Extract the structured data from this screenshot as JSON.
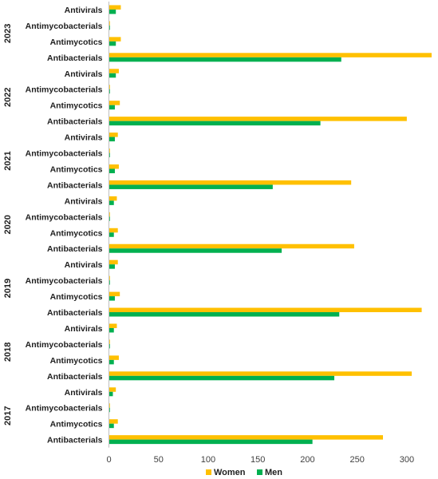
{
  "chart_data": {
    "type": "bar",
    "orientation": "horizontal",
    "title": "",
    "xlabel": "",
    "ylabel": "",
    "xlim": [
      0,
      325
    ],
    "xticks": [
      0,
      50,
      100,
      150,
      200,
      250,
      300
    ],
    "grid": false,
    "legend_position": "bottom",
    "colors": {
      "Women": "#FFC000",
      "Men": "#00B050"
    },
    "groups": [
      {
        "year": "2023",
        "categories": [
          {
            "label": "Antivirals",
            "Women": 12,
            "Men": 7
          },
          {
            "label": "Antimycobacterials",
            "Women": 1,
            "Men": 1
          },
          {
            "label": "Antimycotics",
            "Women": 12,
            "Men": 7
          },
          {
            "label": "Antibacterials",
            "Women": 325,
            "Men": 234
          }
        ]
      },
      {
        "year": "2022",
        "categories": [
          {
            "label": "Antivirals",
            "Women": 10,
            "Men": 7
          },
          {
            "label": "Antimycobacterials",
            "Women": 1,
            "Men": 1
          },
          {
            "label": "Antimycotics",
            "Women": 11,
            "Men": 6
          },
          {
            "label": "Antibacterials",
            "Women": 300,
            "Men": 213
          }
        ]
      },
      {
        "year": "2021",
        "categories": [
          {
            "label": "Antivirals",
            "Women": 9,
            "Men": 6
          },
          {
            "label": "Antimycobacterials",
            "Women": 1,
            "Men": 1
          },
          {
            "label": "Antimycotics",
            "Women": 10,
            "Men": 6
          },
          {
            "label": "Antibacterials",
            "Women": 244,
            "Men": 165
          }
        ]
      },
      {
        "year": "2020",
        "categories": [
          {
            "label": "Antivirals",
            "Women": 8,
            "Men": 5
          },
          {
            "label": "Antimycobacterials",
            "Women": 1,
            "Men": 1
          },
          {
            "label": "Antimycotics",
            "Women": 9,
            "Men": 5
          },
          {
            "label": "Antibacterials",
            "Women": 247,
            "Men": 174
          }
        ]
      },
      {
        "year": "2019",
        "categories": [
          {
            "label": "Antivirals",
            "Women": 9,
            "Men": 6
          },
          {
            "label": "Antimycobacterials",
            "Women": 1,
            "Men": 1
          },
          {
            "label": "Antimycotics",
            "Women": 11,
            "Men": 6
          },
          {
            "label": "Antibacterials",
            "Women": 315,
            "Men": 232
          }
        ]
      },
      {
        "year": "2018",
        "categories": [
          {
            "label": "Antivirals",
            "Women": 8,
            "Men": 5
          },
          {
            "label": "Antimycobacterials",
            "Women": 1,
            "Men": 1
          },
          {
            "label": "Antimycotics",
            "Women": 10,
            "Men": 5
          },
          {
            "label": "Antibacterials",
            "Women": 305,
            "Men": 227
          }
        ]
      },
      {
        "year": "2017",
        "categories": [
          {
            "label": "Antivirals",
            "Women": 7,
            "Men": 4
          },
          {
            "label": "Antimycobacterials",
            "Women": 1,
            "Men": 1
          },
          {
            "label": "Antimycotics",
            "Women": 9,
            "Men": 5
          },
          {
            "label": "Antibacterials",
            "Women": 276,
            "Men": 205
          }
        ]
      }
    ],
    "legend": [
      {
        "name": "Women",
        "color": "#FFC000"
      },
      {
        "name": "Men",
        "color": "#00B050"
      }
    ]
  }
}
